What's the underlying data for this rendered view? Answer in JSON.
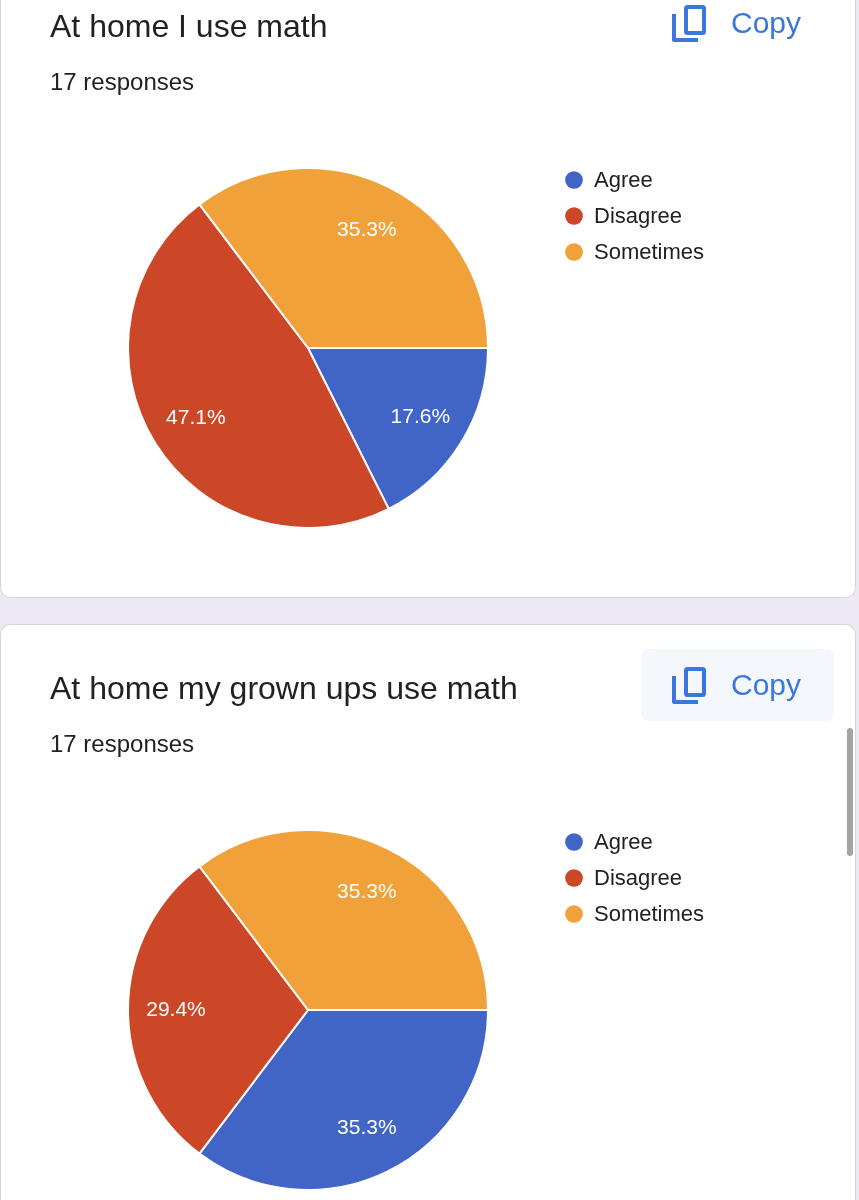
{
  "chart_data": [
    {
      "type": "pie",
      "title": "At home I use math",
      "subtitle": "17 responses",
      "categories": [
        "Agree",
        "Disagree",
        "Sometimes"
      ],
      "values": [
        17.6,
        47.1,
        35.3
      ],
      "colors": [
        "#4065c6",
        "#cc4727",
        "#f0a13a"
      ],
      "value_labels": [
        "17.6%",
        "47.1%",
        "35.3%"
      ],
      "legend": "right",
      "annotations": [
        "Copy"
      ]
    },
    {
      "type": "pie",
      "title": "At home my grown ups use math",
      "subtitle": "17 responses",
      "categories": [
        "Agree",
        "Disagree",
        "Sometimes"
      ],
      "values": [
        35.3,
        29.4,
        35.3
      ],
      "colors": [
        "#4065c6",
        "#cc4727",
        "#f0a13a"
      ],
      "value_labels": [
        "35.3%",
        "29.4%",
        "35.3%"
      ],
      "legend": "right",
      "annotations": [
        "Copy"
      ]
    }
  ]
}
